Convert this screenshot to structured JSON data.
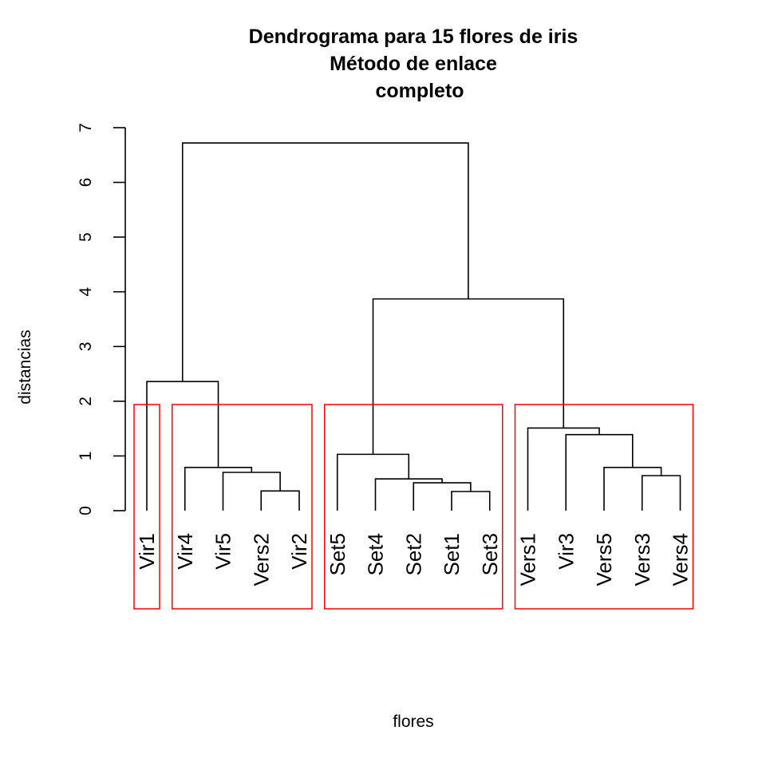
{
  "chart_data": {
    "type": "dendrogram",
    "title": [
      "Dendrograma para 15 flores de iris",
      "Método de enlace",
      "completo"
    ],
    "xlabel": "flores",
    "ylabel": "distancias",
    "ylim": [
      0,
      7
    ],
    "yticks": [
      0,
      1,
      2,
      3,
      4,
      5,
      6,
      7
    ],
    "leaves": [
      "Vir1",
      "Vir4",
      "Vir5",
      "Vers2",
      "Vir2",
      "Set5",
      "Set4",
      "Set2",
      "Set1",
      "Set3",
      "Vers1",
      "Vir3",
      "Vers5",
      "Vers3",
      "Vers4"
    ],
    "merges": [
      {
        "left": "Vir2",
        "right": "Vers2",
        "height": 0.36
      },
      {
        "left": "Set1",
        "right": "Set3",
        "height": 0.35
      },
      {
        "left": "Vers3",
        "right": "Vers4",
        "height": 0.64
      },
      {
        "left": "Set2",
        "right": "{Set1,Set3}",
        "height": 0.51
      },
      {
        "left": "Vir5",
        "right": "{Vers2,Vir2}",
        "height": 0.7
      },
      {
        "left": "Vers5",
        "right": "{Vers3,Vers4}",
        "height": 0.79
      },
      {
        "left": "Vir4",
        "right": "{Vir5,Vers2,Vir2}",
        "height": 0.79
      },
      {
        "left": "Set4",
        "right": "{Set2,Set1,Set3}",
        "height": 0.58
      },
      {
        "left": "Set5",
        "right": "{Set4,Set2,Set1,Set3}",
        "height": 1.03
      },
      {
        "left": "Vir3",
        "right": "{Vers5,Vers3,Vers4}",
        "height": 1.39
      },
      {
        "left": "Vers1",
        "right": "{Vir3,Vers5,Vers3,Vers4}",
        "height": 1.51
      },
      {
        "left": "Vir1",
        "right": "{Vir4,Vir5,Vers2,Vir2}",
        "height": 2.36
      },
      {
        "left": "{Set cluster}",
        "right": "{Vers cluster}",
        "height": 3.87
      },
      {
        "left": "{Vir cluster}",
        "right": "{Set+Vers cluster}",
        "height": 6.72
      }
    ],
    "cut_height": 1.94,
    "clusters": [
      [
        "Vir1"
      ],
      [
        "Vir4",
        "Vir5",
        "Vers2",
        "Vir2"
      ],
      [
        "Set5",
        "Set4",
        "Set2",
        "Set1",
        "Set3"
      ],
      [
        "Vers1",
        "Vir3",
        "Vers5",
        "Vers3",
        "Vers4"
      ]
    ],
    "cluster_color": "#ff0000",
    "branch_color": "#000000"
  }
}
